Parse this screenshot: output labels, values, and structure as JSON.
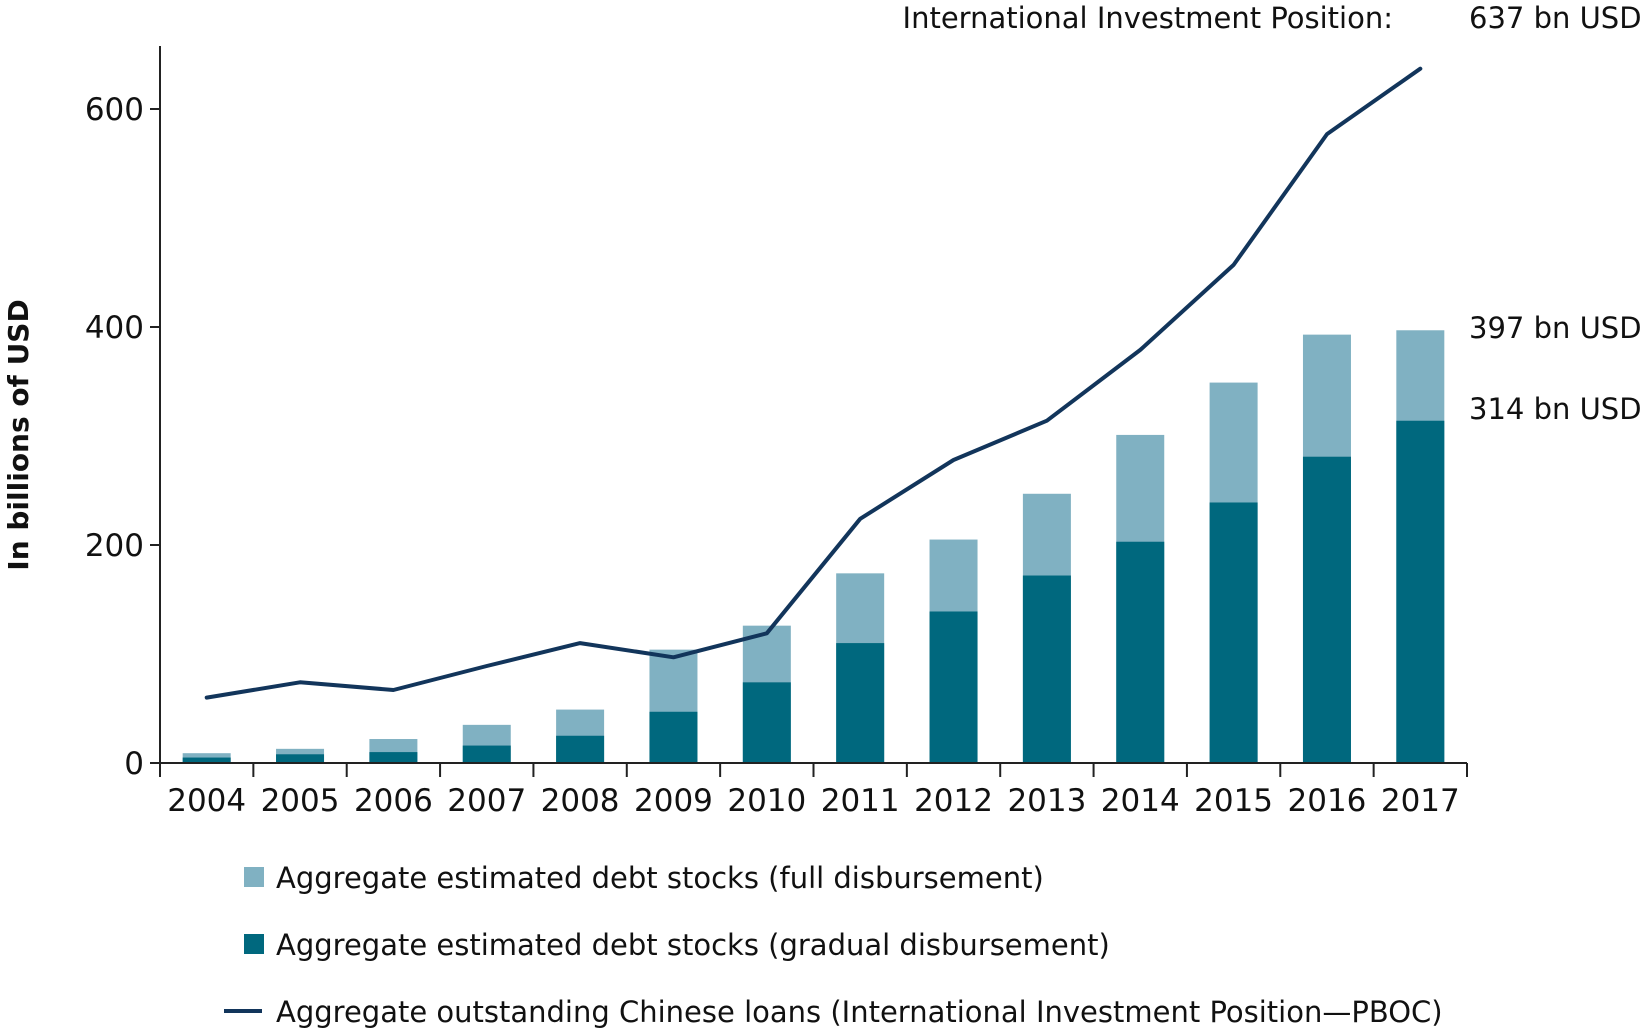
{
  "chart_data": {
    "type": "bar",
    "x": [
      "2004",
      "2005",
      "2006",
      "2007",
      "2008",
      "2009",
      "2010",
      "2011",
      "2012",
      "2013",
      "2014",
      "2015",
      "2016",
      "2017"
    ],
    "ylabel": "In billions of USD",
    "xlabel": "",
    "ylim": [
      0,
      650
    ],
    "yticks": [
      "0",
      "200",
      "400",
      "600"
    ],
    "grid": false,
    "legend_position": "bottom",
    "series": [
      {
        "name": "Aggregate estimated debt stocks (full disbursement)",
        "type": "bar",
        "color": "#80b1c2",
        "values": [
          9,
          13,
          22,
          35,
          49,
          104,
          126,
          174,
          205,
          247,
          301,
          349,
          393,
          397
        ]
      },
      {
        "name": "Aggregate estimated debt stocks (gradual disbursement)",
        "type": "bar",
        "color": "#00687e",
        "values": [
          5,
          8,
          10,
          16,
          25,
          47,
          74,
          110,
          139,
          172,
          203,
          239,
          281,
          314
        ]
      },
      {
        "name": "Aggregate outstanding Chinese loans (International Investment Position—PBOC)",
        "type": "line",
        "color": "#12355b",
        "values": [
          60,
          74,
          67,
          89,
          110,
          97,
          119,
          224,
          278,
          314,
          379,
          457,
          577,
          637
        ]
      }
    ],
    "annotations": {
      "iip_label": "International Investment Position:",
      "iip_value": "637 bn USD",
      "full_value": "397 bn USD",
      "gradual_value": "314 bn USD"
    }
  }
}
